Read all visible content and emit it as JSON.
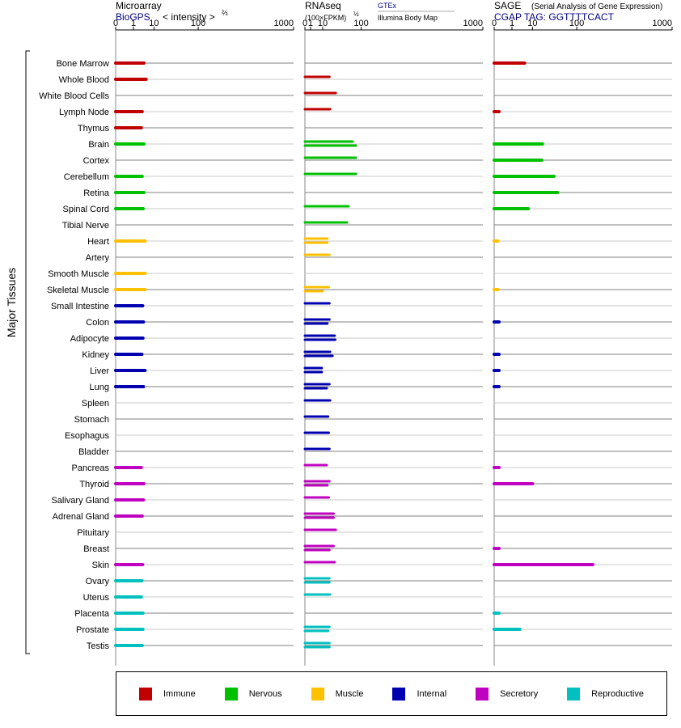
{
  "chart_data": {
    "type": "bar",
    "yaxis_label": "Major Tissues",
    "tissues": [
      {
        "name": "Bone Marrow",
        "group": "Immune"
      },
      {
        "name": "Whole Blood",
        "group": "Immune"
      },
      {
        "name": "White Blood Cells",
        "group": "Immune"
      },
      {
        "name": "Lymph Node",
        "group": "Immune"
      },
      {
        "name": "Thymus",
        "group": "Immune"
      },
      {
        "name": "Brain",
        "group": "Nervous"
      },
      {
        "name": "Cortex",
        "group": "Nervous"
      },
      {
        "name": "Cerebellum",
        "group": "Nervous"
      },
      {
        "name": "Retina",
        "group": "Nervous"
      },
      {
        "name": "Spinal Cord",
        "group": "Nervous"
      },
      {
        "name": "Tibial Nerve",
        "group": "Nervous"
      },
      {
        "name": "Heart",
        "group": "Muscle"
      },
      {
        "name": "Artery",
        "group": "Muscle"
      },
      {
        "name": "Smooth Muscle",
        "group": "Muscle"
      },
      {
        "name": "Skeletal Muscle",
        "group": "Muscle"
      },
      {
        "name": "Small Intestine",
        "group": "Internal"
      },
      {
        "name": "Colon",
        "group": "Internal"
      },
      {
        "name": "Adipocyte",
        "group": "Internal"
      },
      {
        "name": "Kidney",
        "group": "Internal"
      },
      {
        "name": "Liver",
        "group": "Internal"
      },
      {
        "name": "Lung",
        "group": "Internal"
      },
      {
        "name": "Spleen",
        "group": "Internal"
      },
      {
        "name": "Stomach",
        "group": "Internal"
      },
      {
        "name": "Esophagus",
        "group": "Internal"
      },
      {
        "name": "Bladder",
        "group": "Internal"
      },
      {
        "name": "Pancreas",
        "group": "Secretory"
      },
      {
        "name": "Thyroid",
        "group": "Secretory"
      },
      {
        "name": "Salivary Gland",
        "group": "Secretory"
      },
      {
        "name": "Adrenal Gland",
        "group": "Secretory"
      },
      {
        "name": "Pituitary",
        "group": "Secretory"
      },
      {
        "name": "Breast",
        "group": "Secretory"
      },
      {
        "name": "Skin",
        "group": "Secretory"
      },
      {
        "name": "Ovary",
        "group": "Reproductive"
      },
      {
        "name": "Uterus",
        "group": "Reproductive"
      },
      {
        "name": "Placenta",
        "group": "Reproductive"
      },
      {
        "name": "Prostate",
        "group": "Reproductive"
      },
      {
        "name": "Testis",
        "group": "Reproductive"
      }
    ],
    "groups": [
      {
        "name": "Immune",
        "color": "#c00000"
      },
      {
        "name": "Nervous",
        "color": "#00c000"
      },
      {
        "name": "Muscle",
        "color": "#ffc000"
      },
      {
        "name": "Internal",
        "color": "#0000b0"
      },
      {
        "name": "Secretory",
        "color": "#c000c0"
      },
      {
        "name": "Reproductive",
        "color": "#00c0c0"
      }
    ],
    "panels": [
      {
        "id": "microarray",
        "title": "Microarray",
        "title_suffix": "",
        "subtitle": "BioGPS",
        "subtitle2": "< intensity >",
        "subtitle2_sup": "⅔",
        "extra_label": "",
        "extra_label2": "",
        "ticks": [
          "0",
          "1",
          "10",
          "100",
          "1000"
        ],
        "scale": "power 1/3",
        "xlim": [
          0,
          1000
        ],
        "values": [
          4,
          5,
          null,
          3.3,
          3,
          4,
          null,
          3.3,
          4,
          3.7,
          null,
          4.5,
          null,
          4.5,
          4.5,
          3.5,
          3.8,
          3.6,
          3.2,
          4.5,
          3.8,
          null,
          null,
          null,
          null,
          3,
          4,
          3.8,
          3.3,
          null,
          null,
          3.5,
          3.2,
          3,
          3.6,
          3.6,
          3.3
        ]
      },
      {
        "id": "rnaseq",
        "title": "RNAseq",
        "title_suffix": "",
        "subtitle": "(100×FPKM)",
        "subtitle2": "",
        "subtitle2_sup": "½",
        "extra_label": "GTEx",
        "extra_label2": "Illumina Body Map",
        "ticks": [
          "0",
          "1",
          "10",
          "100",
          "1000"
        ],
        "scale": "sqrt",
        "xlim": [
          0,
          1000
        ],
        "gtex": [
          null,
          null,
          null,
          null,
          null,
          75,
          null,
          70,
          null,
          55,
          50,
          null,
          null,
          null,
          null,
          null,
          null,
          null,
          null,
          null,
          null,
          null,
          null,
          null,
          null,
          null,
          null,
          null,
          null,
          null,
          null,
          null,
          null,
          null,
          null,
          null,
          null
        ],
        "values_gtex": [
          null,
          19,
          23,
          21,
          null,
          78,
          78,
          80,
          null,
          30,
          29,
          null,
          null,
          null,
          null,
          null,
          19,
          26,
          24,
          20,
          null,
          null,
          null,
          null,
          null,
          null,
          19,
          null,
          26,
          30,
          26,
          28,
          null,
          null,
          null,
          null,
          null
        ],
        "values_ibm": [
          null,
          null,
          null,
          null,
          null,
          81,
          null,
          null,
          null,
          null,
          null,
          16,
          19,
          null,
          17,
          19,
          null,
          null,
          null,
          null,
          null,
          20,
          17,
          18,
          19,
          15,
          null,
          18,
          null,
          null,
          null,
          null,
          19,
          20,
          null,
          19,
          19
        ],
        "values": [
          null,
          19,
          30,
          20,
          null,
          72,
          82,
          82,
          null,
          60,
          56,
          16,
          19,
          null,
          18,
          19,
          19,
          28,
          20,
          9,
          19,
          20,
          17,
          18,
          19,
          15,
          19,
          18,
          26,
          30,
          26,
          28,
          19,
          20,
          null,
          19,
          19
        ],
        "values2": [
          null,
          null,
          null,
          null,
          null,
          82,
          null,
          null,
          null,
          null,
          null,
          16,
          null,
          null,
          10,
          null,
          16,
          29,
          24,
          9,
          15,
          null,
          null,
          null,
          null,
          null,
          16,
          null,
          26,
          null,
          19,
          null,
          19,
          null,
          null,
          17,
          19
        ],
        "values3": [
          null,
          null,
          null,
          null,
          null,
          null,
          null,
          null,
          null,
          null,
          null,
          null,
          null,
          null,
          null,
          null,
          null,
          null,
          null,
          null,
          null,
          null,
          null,
          null,
          null,
          null,
          null,
          null,
          null,
          null,
          null,
          null,
          null,
          null,
          null,
          null,
          19
        ]
      },
      {
        "id": "sage",
        "title": "SAGE",
        "title_suffix": "(Serial Analysis of Gene Expression)",
        "subtitle": "CGAP TAG: GGTTTTCACT",
        "subtitle2": "",
        "subtitle2_sup": "",
        "extra_label": "",
        "extra_label2": "",
        "ticks": [
          "0",
          "1",
          "10",
          "100",
          "1000"
        ],
        "scale": "power 1/3",
        "xlim": [
          0,
          1000
        ],
        "values": [
          5,
          null,
          null,
          0.02,
          null,
          20,
          19,
          38,
          45,
          7,
          null,
          0.01,
          null,
          null,
          0.01,
          null,
          0.02,
          null,
          0.02,
          0.02,
          0.02,
          null,
          null,
          null,
          null,
          0.02,
          10,
          null,
          null,
          null,
          0.02,
          170,
          null,
          null,
          0.02,
          3,
          null
        ]
      }
    ]
  }
}
